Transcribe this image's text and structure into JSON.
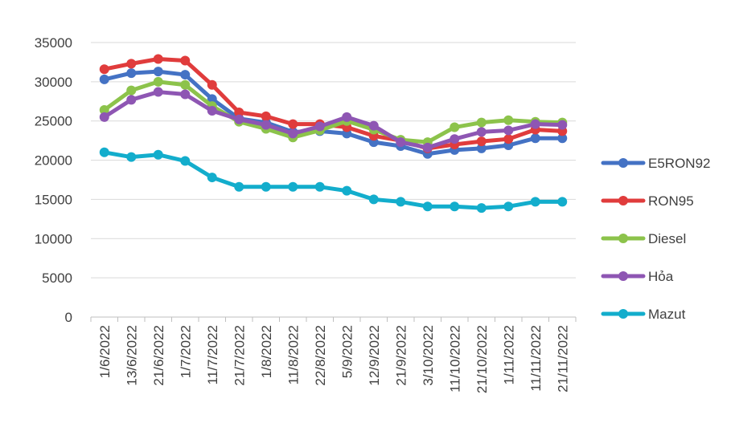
{
  "chart_data": {
    "type": "line",
    "title": "",
    "xlabel": "",
    "ylabel": "",
    "ylim": [
      0,
      35000
    ],
    "yticks": [
      "0",
      "5000",
      "10000",
      "15000",
      "20000",
      "25000",
      "30000",
      "35000"
    ],
    "grid": true,
    "legend_position": "right",
    "categories": [
      "1/6/2022",
      "13/6/2022",
      "21/6/2022",
      "1/7/2022",
      "11/7/2022",
      "21/7/2022",
      "1/8/2022",
      "11/8/2022",
      "22/8/2022",
      "5/9/2022",
      "12/9/2022",
      "21/9/2022",
      "3/10/2022",
      "11/10/2022",
      "21/10/2022",
      "1/11/2022",
      "11/11/2022",
      "21/11/2022"
    ],
    "series": [
      {
        "name": "E5RON92",
        "color": "#4472C4",
        "values": [
          30300,
          31100,
          31300,
          30900,
          27800,
          25300,
          24800,
          23600,
          23700,
          23400,
          22300,
          21800,
          20800,
          21300,
          21500,
          21900,
          22800,
          22800
        ]
      },
      {
        "name": "RON95",
        "color": "#E03C3C",
        "values": [
          31600,
          32300,
          32900,
          32700,
          29600,
          26100,
          25600,
          24600,
          24600,
          24200,
          23100,
          22500,
          21500,
          22000,
          22400,
          22700,
          23900,
          23700
        ]
      },
      {
        "name": "Diesel",
        "color": "#8CC34B",
        "values": [
          26400,
          28900,
          30000,
          29600,
          26900,
          24900,
          24000,
          22900,
          23800,
          25000,
          23900,
          22600,
          22300,
          24200,
          24800,
          25100,
          24900,
          24800
        ]
      },
      {
        "name": "Hỏa",
        "color": "#8E56B3",
        "values": [
          25500,
          27700,
          28700,
          28400,
          26300,
          25200,
          24500,
          23400,
          24300,
          25500,
          24400,
          22300,
          21600,
          22700,
          23600,
          23800,
          24600,
          24500
        ]
      },
      {
        "name": "Mazut",
        "color": "#13ADCC",
        "values": [
          21000,
          20400,
          20700,
          19900,
          17800,
          16600,
          16600,
          16600,
          16600,
          16100,
          15000,
          14700,
          14100,
          14100,
          13900,
          14100,
          14700,
          14700
        ]
      }
    ]
  }
}
